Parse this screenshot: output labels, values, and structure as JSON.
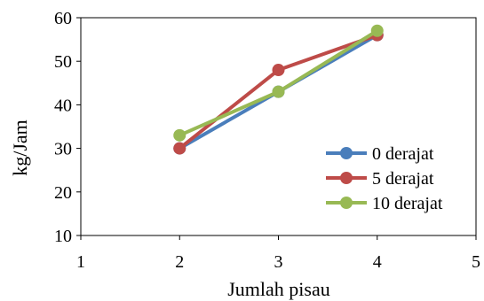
{
  "chart_data": {
    "type": "line",
    "title": "",
    "xlabel": "Jumlah pisau",
    "ylabel": "kg/Jam",
    "xlim": [
      1,
      5
    ],
    "ylim": [
      10,
      60
    ],
    "xticks": [
      "1",
      "2",
      "3",
      "4",
      "5"
    ],
    "yticks": [
      "10",
      "20",
      "30",
      "40",
      "50",
      "60"
    ],
    "grid": false,
    "legend_position": "bottom-right",
    "series": [
      {
        "name": "0 derajat",
        "color": "#4a7ebb",
        "x": [
          2,
          3,
          4
        ],
        "y": [
          30,
          43,
          56
        ]
      },
      {
        "name": "5 derajat",
        "color": "#be4b48",
        "x": [
          2,
          3,
          4
        ],
        "y": [
          30,
          48,
          56
        ]
      },
      {
        "name": "10 derajat",
        "color": "#98b954",
        "x": [
          2,
          3,
          4
        ],
        "y": [
          33,
          43,
          57
        ]
      }
    ]
  }
}
